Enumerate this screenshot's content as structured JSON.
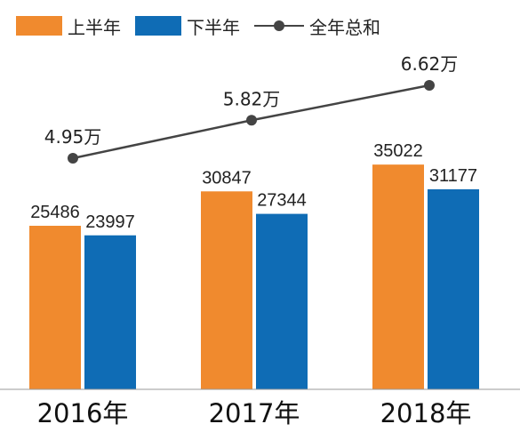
{
  "legend": {
    "first_half": "上半年",
    "second_half": "下半年",
    "total": "全年总和"
  },
  "chart_data": {
    "type": "bar",
    "categories": [
      "2016年",
      "2017年",
      "2018年"
    ],
    "series": [
      {
        "name": "上半年",
        "values": [
          25486,
          30847,
          35022
        ],
        "color": "#f08a2e"
      },
      {
        "name": "下半年",
        "values": [
          23997,
          27344,
          31177
        ],
        "color": "#0f6cb5"
      }
    ],
    "line_series": {
      "name": "全年总和",
      "values": [
        4.95,
        5.82,
        6.62
      ],
      "labels": [
        "4.95万",
        "5.82万",
        "6.62万"
      ],
      "color": "#444444"
    },
    "ylim": [
      0,
      45000
    ],
    "grid": false,
    "legend_position": "top-left"
  }
}
